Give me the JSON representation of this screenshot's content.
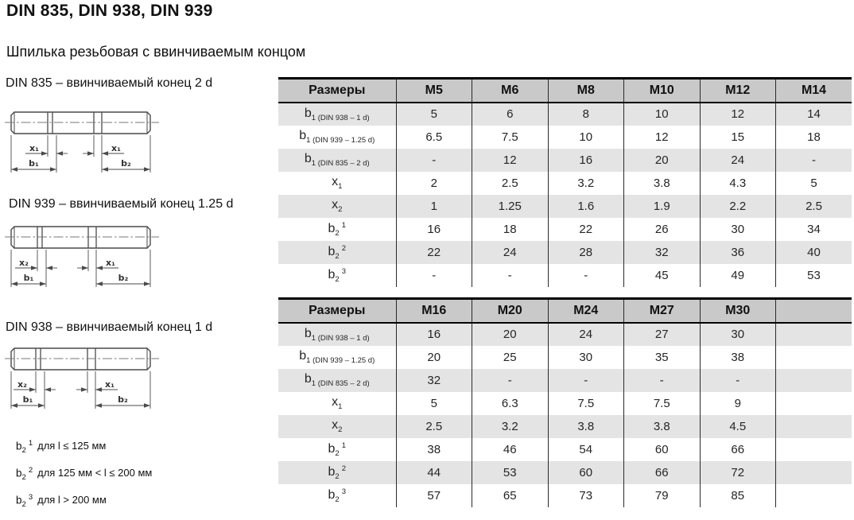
{
  "title": "DIN 835, DIN 938, DIN 939",
  "subtitle": "Шпилька резьбовая с ввинчиваемым концом",
  "drawings": [
    {
      "caption": "DIN 835 – ввинчиваемый конец 2 d",
      "dim_left": "x₁",
      "dim_right": "x₁",
      "dim_b_left": "b₁",
      "dim_b_right": "b₂"
    },
    {
      "caption": "DIN 939 – ввинчиваемый конец 1.25 d",
      "dim_left": "x₂",
      "dim_right": "x₁",
      "dim_b_left": "b₁",
      "dim_b_right": "b₂"
    },
    {
      "caption": "DIN 938 – ввинчиваемый конец 1 d",
      "dim_left": "x₂",
      "dim_right": "x₁",
      "dim_b_left": "b₁",
      "dim_b_right": "b₂"
    }
  ],
  "footnotes": [
    {
      "main": "b",
      "sub": "2",
      "sup": "1",
      "text": "для l ≤ 125 мм"
    },
    {
      "main": "b",
      "sub": "2",
      "sup": "2",
      "text": "для 125 мм < l ≤ 200 мм"
    },
    {
      "main": "b",
      "sub": "2",
      "sup": "3",
      "text": "для l > 200 мм"
    }
  ],
  "row_labels": [
    {
      "main": "b",
      "sub": "1 (DIN 938 – 1 d)"
    },
    {
      "main": "b",
      "sub": "1 (DIN 939 – 1.25 d)"
    },
    {
      "main": "b",
      "sub": "1 (DIN 835 – 2 d)"
    },
    {
      "main": "x",
      "sub": "1"
    },
    {
      "main": "x",
      "sub": "2"
    },
    {
      "main": "b",
      "sub": "2",
      "sup": "1"
    },
    {
      "main": "b",
      "sub": "2",
      "sup": "2"
    },
    {
      "main": "b",
      "sub": "2",
      "sup": "3"
    }
  ],
  "tables": [
    {
      "corner": "Размеры",
      "columns": [
        "M5",
        "M6",
        "M8",
        "M10",
        "M12",
        "M14"
      ],
      "rows": [
        [
          "5",
          "6",
          "8",
          "10",
          "12",
          "14"
        ],
        [
          "6.5",
          "7.5",
          "10",
          "12",
          "15",
          "18"
        ],
        [
          "-",
          "12",
          "16",
          "20",
          "24",
          "-"
        ],
        [
          "2",
          "2.5",
          "3.2",
          "3.8",
          "4.3",
          "5"
        ],
        [
          "1",
          "1.25",
          "1.6",
          "1.9",
          "2.2",
          "2.5"
        ],
        [
          "16",
          "18",
          "22",
          "26",
          "30",
          "34"
        ],
        [
          "22",
          "24",
          "28",
          "32",
          "36",
          "40"
        ],
        [
          "-",
          "-",
          "-",
          "45",
          "49",
          "53"
        ]
      ]
    },
    {
      "corner": "Размеры",
      "columns": [
        "M16",
        "M20",
        "M24",
        "M27",
        "M30",
        ""
      ],
      "rows": [
        [
          "16",
          "20",
          "24",
          "27",
          "30",
          ""
        ],
        [
          "20",
          "25",
          "30",
          "35",
          "38",
          ""
        ],
        [
          "32",
          "-",
          "-",
          "-",
          "-",
          ""
        ],
        [
          "5",
          "6.3",
          "7.5",
          "7.5",
          "9",
          ""
        ],
        [
          "2.5",
          "3.2",
          "3.8",
          "3.8",
          "4.5",
          ""
        ],
        [
          "38",
          "46",
          "54",
          "60",
          "66",
          ""
        ],
        [
          "44",
          "53",
          "60",
          "66",
          "72",
          ""
        ],
        [
          "57",
          "65",
          "73",
          "79",
          "85",
          ""
        ]
      ]
    }
  ],
  "colors": {
    "header_bg": "#c9c9c9",
    "stripe_bg": "#e4e4e4",
    "border": "#000000"
  }
}
